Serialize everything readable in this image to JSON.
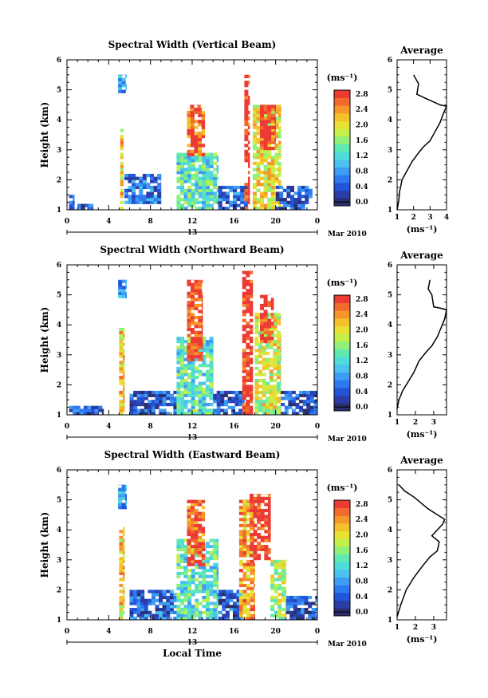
{
  "chart_data": [
    {
      "type": "heatmap",
      "title": "Spectral Width (Vertical Beam)",
      "ylabel": "Height (km)",
      "xlabel": "",
      "x_ticks": [
        "0",
        "4",
        "8",
        "12",
        "16",
        "20",
        "0"
      ],
      "y_ticks": [
        "1",
        "2",
        "3",
        "4",
        "5",
        "6"
      ],
      "xlim": [
        0,
        24
      ],
      "ylim": [
        1,
        6
      ],
      "date_label": "13",
      "date_suffix": "Mar 2010",
      "colorbar": {
        "unit": "(ms⁻¹)",
        "labels": [
          "0.0",
          "0.4",
          "0.8",
          "1.2",
          "1.6",
          "2.0",
          "2.4",
          "2.8"
        ],
        "range": [
          0,
          3.0
        ]
      },
      "regions": [
        {
          "t0": 0.2,
          "t1": 0.7,
          "h0": 1.0,
          "h1": 1.5,
          "v": 0.6
        },
        {
          "t0": 1.0,
          "t1": 2.5,
          "h0": 1.0,
          "h1": 1.2,
          "v": 0.5
        },
        {
          "t0": 4.9,
          "t1": 5.7,
          "h0": 4.9,
          "h1": 5.5,
          "v": 0.9
        },
        {
          "t0": 5.1,
          "t1": 5.4,
          "h0": 1.0,
          "h1": 3.7,
          "v": 2.2
        },
        {
          "t0": 5.5,
          "t1": 9.0,
          "h0": 1.2,
          "h1": 2.2,
          "v": 0.7
        },
        {
          "t0": 10.5,
          "t1": 14.5,
          "h0": 1.0,
          "h1": 2.9,
          "v": 1.4
        },
        {
          "t0": 11.5,
          "t1": 13.2,
          "h0": 2.8,
          "h1": 4.4,
          "v": 2.7
        },
        {
          "t0": 11.8,
          "t1": 12.8,
          "h0": 4.2,
          "h1": 4.5,
          "v": 3.0
        },
        {
          "t0": 14.5,
          "t1": 17.5,
          "h0": 1.0,
          "h1": 1.8,
          "v": 0.6
        },
        {
          "t0": 17.0,
          "t1": 17.5,
          "h0": 1.0,
          "h1": 5.5,
          "v": 3.0
        },
        {
          "t0": 17.8,
          "t1": 20.5,
          "h0": 1.0,
          "h1": 4.5,
          "v": 2.1
        },
        {
          "t0": 18.5,
          "t1": 20.0,
          "h0": 3.0,
          "h1": 4.5,
          "v": 3.0
        },
        {
          "t0": 20.0,
          "t1": 23.5,
          "h0": 1.0,
          "h1": 1.8,
          "v": 0.5
        }
      ],
      "average": {
        "title": "Average",
        "xlabel": "(ms⁻¹)",
        "x_ticks": [
          "1",
          "2",
          "3",
          "4"
        ],
        "xlim": [
          1,
          4
        ],
        "y_ticks": [
          "1",
          "2",
          "3",
          "4",
          "5",
          "6"
        ],
        "ylim": [
          1,
          6
        ],
        "profile": [
          [
            1.0,
            1.0
          ],
          [
            1.1,
            1.3
          ],
          [
            1.15,
            1.6
          ],
          [
            1.3,
            2.0
          ],
          [
            1.6,
            2.3
          ],
          [
            1.9,
            2.6
          ],
          [
            2.3,
            2.9
          ],
          [
            2.6,
            3.1
          ],
          [
            3.0,
            3.3
          ],
          [
            3.3,
            3.6
          ],
          [
            3.6,
            3.9
          ],
          [
            3.8,
            4.2
          ],
          [
            4.0,
            4.45
          ],
          [
            3.6,
            4.5
          ],
          [
            2.8,
            4.7
          ],
          [
            2.2,
            4.85
          ],
          [
            2.3,
            5.2
          ],
          [
            2.0,
            5.5
          ]
        ]
      }
    },
    {
      "type": "heatmap",
      "title": "Spectral Width (Northward Beam)",
      "ylabel": "Height (km)",
      "xlabel": "",
      "x_ticks": [
        "0",
        "4",
        "8",
        "12",
        "16",
        "20",
        "0"
      ],
      "y_ticks": [
        "1",
        "2",
        "3",
        "4",
        "5",
        "6"
      ],
      "xlim": [
        0,
        24
      ],
      "ylim": [
        1,
        6
      ],
      "date_label": "13",
      "date_suffix": "Mar 2010",
      "colorbar": {
        "unit": "(ms⁻¹)",
        "labels": [
          "0.0",
          "0.4",
          "0.8",
          "1.2",
          "1.6",
          "2.0",
          "2.4",
          "2.8"
        ],
        "range": [
          0,
          3.0
        ]
      },
      "regions": [
        {
          "t0": 0.2,
          "t1": 3.5,
          "h0": 1.0,
          "h1": 1.3,
          "v": 0.5
        },
        {
          "t0": 4.9,
          "t1": 5.7,
          "h0": 4.9,
          "h1": 5.5,
          "v": 0.9
        },
        {
          "t0": 5.0,
          "t1": 5.5,
          "h0": 1.0,
          "h1": 3.9,
          "v": 2.2
        },
        {
          "t0": 6.0,
          "t1": 10.5,
          "h0": 1.0,
          "h1": 1.8,
          "v": 0.5
        },
        {
          "t0": 10.5,
          "t1": 14.0,
          "h0": 1.0,
          "h1": 3.6,
          "v": 1.4
        },
        {
          "t0": 11.5,
          "t1": 13.0,
          "h0": 2.8,
          "h1": 5.5,
          "v": 2.9
        },
        {
          "t0": 14.0,
          "t1": 17.0,
          "h0": 1.0,
          "h1": 1.8,
          "v": 0.5
        },
        {
          "t0": 16.8,
          "t1": 17.8,
          "h0": 1.0,
          "h1": 5.8,
          "v": 3.0
        },
        {
          "t0": 18.0,
          "t1": 20.5,
          "h0": 1.0,
          "h1": 4.4,
          "v": 2.0
        },
        {
          "t0": 18.5,
          "t1": 19.8,
          "h0": 3.4,
          "h1": 5.0,
          "v": 3.0
        },
        {
          "t0": 20.5,
          "t1": 24.0,
          "h0": 1.0,
          "h1": 1.8,
          "v": 0.5
        }
      ],
      "average": {
        "title": "Average",
        "xlabel": "(ms⁻¹)",
        "x_ticks": [
          "1",
          "2",
          "3"
        ],
        "xlim": [
          1,
          3.7
        ],
        "y_ticks": [
          "1",
          "2",
          "3",
          "4",
          "5",
          "6"
        ],
        "ylim": [
          1,
          6
        ],
        "profile": [
          [
            1.0,
            1.2
          ],
          [
            1.1,
            1.5
          ],
          [
            1.3,
            1.8
          ],
          [
            1.6,
            2.1
          ],
          [
            1.9,
            2.4
          ],
          [
            2.2,
            2.8
          ],
          [
            2.6,
            3.1
          ],
          [
            2.9,
            3.3
          ],
          [
            3.2,
            3.6
          ],
          [
            3.4,
            3.9
          ],
          [
            3.6,
            4.2
          ],
          [
            3.7,
            4.5
          ],
          [
            3.4,
            4.55
          ],
          [
            3.0,
            4.6
          ],
          [
            2.9,
            5.0
          ],
          [
            2.7,
            5.2
          ],
          [
            2.8,
            5.5
          ]
        ]
      }
    },
    {
      "type": "heatmap",
      "title": "Spectral Width (Eastward Beam)",
      "ylabel": "Height (km)",
      "xlabel": "Local Time",
      "x_ticks": [
        "0",
        "4",
        "8",
        "12",
        "16",
        "20",
        "0"
      ],
      "y_ticks": [
        "1",
        "2",
        "3",
        "4",
        "5",
        "6"
      ],
      "xlim": [
        0,
        24
      ],
      "ylim": [
        1,
        6
      ],
      "date_label": "13",
      "date_suffix": "Mar 2010",
      "colorbar": {
        "unit": "(ms⁻¹)",
        "labels": [
          "0.0",
          "0.4",
          "0.8",
          "1.2",
          "1.6",
          "2.0",
          "2.4",
          "2.8"
        ],
        "range": [
          0,
          3.0
        ]
      },
      "regions": [
        {
          "t0": 4.9,
          "t1": 5.7,
          "h0": 4.7,
          "h1": 5.5,
          "v": 0.9
        },
        {
          "t0": 5.0,
          "t1": 5.5,
          "h0": 1.0,
          "h1": 4.1,
          "v": 2.2
        },
        {
          "t0": 6.0,
          "t1": 10.5,
          "h0": 1.0,
          "h1": 2.0,
          "v": 0.6
        },
        {
          "t0": 10.5,
          "t1": 14.5,
          "h0": 1.0,
          "h1": 3.7,
          "v": 1.4
        },
        {
          "t0": 11.5,
          "t1": 13.2,
          "h0": 2.8,
          "h1": 5.0,
          "v": 2.8
        },
        {
          "t0": 14.5,
          "t1": 16.8,
          "h0": 1.0,
          "h1": 2.0,
          "v": 0.6
        },
        {
          "t0": 16.5,
          "t1": 18.0,
          "h0": 1.0,
          "h1": 5.0,
          "v": 2.4
        },
        {
          "t0": 17.5,
          "t1": 19.5,
          "h0": 3.0,
          "h1": 5.2,
          "v": 3.0
        },
        {
          "t0": 19.5,
          "t1": 21.0,
          "h0": 1.0,
          "h1": 3.0,
          "v": 1.8
        },
        {
          "t0": 21.0,
          "t1": 24.0,
          "h0": 1.0,
          "h1": 1.8,
          "v": 0.5
        }
      ],
      "average": {
        "title": "Average",
        "xlabel": "(ms⁻¹)",
        "x_ticks": [
          "1",
          "2",
          "3"
        ],
        "xlim": [
          1,
          3.7
        ],
        "y_ticks": [
          "1",
          "2",
          "3",
          "4",
          "5",
          "6"
        ],
        "ylim": [
          1,
          6
        ],
        "profile": [
          [
            1.0,
            1.1
          ],
          [
            1.2,
            1.5
          ],
          [
            1.5,
            2.0
          ],
          [
            1.9,
            2.4
          ],
          [
            2.4,
            2.8
          ],
          [
            2.8,
            3.1
          ],
          [
            3.2,
            3.3
          ],
          [
            3.3,
            3.6
          ],
          [
            2.9,
            3.8
          ],
          [
            3.2,
            4.0
          ],
          [
            3.5,
            4.2
          ],
          [
            3.6,
            4.35
          ],
          [
            3.2,
            4.5
          ],
          [
            2.7,
            4.7
          ],
          [
            2.3,
            4.9
          ],
          [
            1.9,
            5.1
          ],
          [
            1.4,
            5.3
          ],
          [
            1.1,
            5.5
          ]
        ]
      }
    }
  ]
}
